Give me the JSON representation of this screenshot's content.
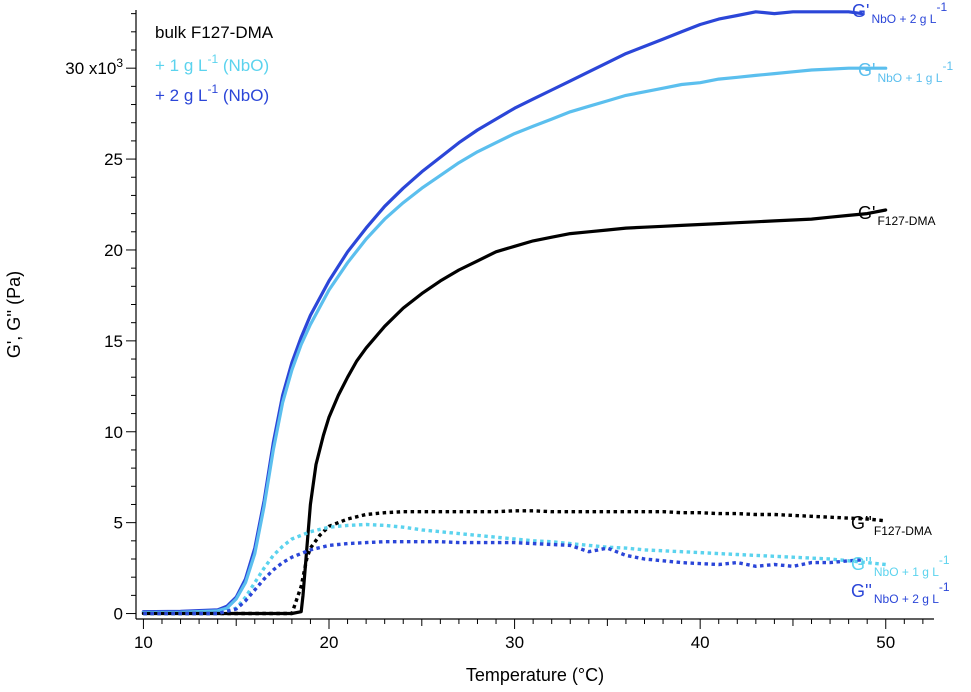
{
  "chart_data": {
    "type": "line",
    "title": "",
    "xlabel": "Temperature (°C)",
    "ylabel": "G', G'' (Pa)",
    "xlim": [
      9.6,
      52.6
    ],
    "ylim": [
      -0.3,
      33.2
    ],
    "x_ticks": [
      10,
      20,
      30,
      40,
      50
    ],
    "x_tick_labels": [
      "10",
      "20",
      "30",
      "40",
      "50"
    ],
    "y_ticks": [
      0,
      5,
      10,
      15,
      20,
      25,
      30
    ],
    "y_tick_labels": [
      "0",
      "5",
      "10",
      "15",
      "20",
      "25",
      "30 x10"
    ],
    "y_tick_top_exponent": "3",
    "legend": {
      "placement": "top-left",
      "entries": [
        {
          "text": "bulk F127-DMA",
          "color": "#000000"
        },
        {
          "text": "+ 1 g L",
          "sup": "-1",
          "suffix": " (NbO)",
          "color": "#5bd3ee"
        },
        {
          "text": "+ 2 g L",
          "sup": "-1",
          "suffix": " (NbO)",
          "color": "#2b46d8"
        }
      ]
    },
    "series": [
      {
        "key": "gp_2",
        "label_main": "G'",
        "label_sub": "NbO + 2 g L",
        "label_sup": "-1",
        "color": "#2b46d8",
        "style": "solid",
        "x": [
          10,
          12,
          14,
          14.5,
          15,
          15.5,
          16,
          16.5,
          17,
          17.5,
          18,
          18.5,
          19,
          20,
          21,
          22,
          23,
          24,
          25,
          26,
          27,
          28,
          29,
          30,
          31,
          32,
          33,
          34,
          35,
          36,
          37,
          38,
          39,
          40,
          41,
          42,
          43,
          44,
          45,
          46,
          47,
          48,
          48.7
        ],
        "y": [
          0.1,
          0.12,
          0.2,
          0.4,
          0.9,
          1.9,
          3.6,
          6.2,
          9.4,
          12.0,
          13.8,
          15.2,
          16.4,
          18.3,
          19.9,
          21.2,
          22.4,
          23.4,
          24.3,
          25.1,
          25.9,
          26.6,
          27.2,
          27.8,
          28.3,
          28.8,
          29.3,
          29.8,
          30.3,
          30.8,
          31.2,
          31.6,
          32.0,
          32.4,
          32.7,
          32.9,
          33.1,
          33.0,
          33.1,
          33.1,
          33.1,
          33.1,
          33.0
        ]
      },
      {
        "key": "gp_1",
        "label_main": "G'",
        "label_sub": "NbO + 1 g L",
        "label_sup": "-1",
        "color": "#5bbfee",
        "style": "solid",
        "x": [
          10,
          12,
          14,
          14.5,
          15,
          15.5,
          16,
          16.5,
          17,
          17.5,
          18,
          18.5,
          19,
          20,
          21,
          22,
          23,
          24,
          25,
          26,
          27,
          28,
          29,
          30,
          31,
          32,
          33,
          34,
          35,
          36,
          37,
          38,
          39,
          40,
          41,
          42,
          43,
          44,
          45,
          46,
          47,
          48,
          49,
          50
        ],
        "y": [
          0.05,
          0.07,
          0.15,
          0.3,
          0.8,
          1.7,
          3.3,
          5.9,
          9.0,
          11.6,
          13.4,
          14.8,
          15.9,
          17.8,
          19.3,
          20.6,
          21.7,
          22.6,
          23.4,
          24.1,
          24.8,
          25.4,
          25.9,
          26.4,
          26.8,
          27.2,
          27.6,
          27.9,
          28.2,
          28.5,
          28.7,
          28.9,
          29.1,
          29.2,
          29.4,
          29.5,
          29.6,
          29.7,
          29.8,
          29.9,
          29.95,
          30.0,
          30.0,
          30.0
        ]
      },
      {
        "key": "gp_0",
        "label_main": "G'",
        "label_sub": "F127-DMA",
        "label_sup": "",
        "color": "#000000",
        "style": "solid",
        "x": [
          10,
          14,
          17,
          18,
          18.5,
          18.6,
          18.8,
          19,
          19.3,
          19.7,
          20,
          20.5,
          21,
          21.5,
          22,
          22.5,
          23,
          24,
          25,
          26,
          27,
          28,
          29,
          30,
          31,
          32,
          33,
          34,
          35,
          36,
          37,
          38,
          39,
          40,
          41,
          42,
          43,
          44,
          45,
          46,
          47,
          48,
          49,
          50
        ],
        "y": [
          0,
          0,
          0,
          0,
          0.1,
          1.0,
          3.5,
          6.0,
          8.2,
          9.8,
          10.8,
          12.0,
          13.0,
          13.9,
          14.6,
          15.2,
          15.8,
          16.8,
          17.6,
          18.3,
          18.9,
          19.4,
          19.9,
          20.2,
          20.5,
          20.7,
          20.9,
          21.0,
          21.1,
          21.2,
          21.25,
          21.3,
          21.35,
          21.4,
          21.45,
          21.5,
          21.55,
          21.6,
          21.65,
          21.7,
          21.8,
          21.9,
          22.0,
          22.2
        ]
      },
      {
        "key": "gpp_0",
        "label_main": "G''",
        "label_sub": "F127-DMA",
        "label_sup": "",
        "color": "#000000",
        "style": "dotted",
        "x": [
          10,
          14,
          17,
          18,
          18.5,
          18.8,
          19,
          19.5,
          20,
          21,
          22,
          23,
          24,
          25,
          26,
          27,
          28,
          29,
          30,
          31,
          32,
          33,
          34,
          35,
          36,
          37,
          38,
          39,
          40,
          41,
          42,
          43,
          44,
          45,
          46,
          47,
          48,
          49,
          50
        ],
        "y": [
          0,
          0,
          0,
          0,
          1.5,
          3.0,
          3.6,
          4.3,
          4.8,
          5.2,
          5.45,
          5.55,
          5.6,
          5.6,
          5.6,
          5.6,
          5.6,
          5.6,
          5.65,
          5.65,
          5.6,
          5.6,
          5.6,
          5.6,
          5.6,
          5.6,
          5.6,
          5.55,
          5.55,
          5.5,
          5.5,
          5.45,
          5.45,
          5.4,
          5.35,
          5.3,
          5.25,
          5.2,
          5.1
        ]
      },
      {
        "key": "gpp_1",
        "label_main": "G''",
        "label_sub": "NbO + 1 g L",
        "label_sup": "-1",
        "color": "#5bd3ee",
        "style": "dotted",
        "x": [
          10,
          14,
          15,
          15.5,
          16,
          16.5,
          17,
          17.5,
          18,
          19,
          20,
          21,
          22,
          23,
          24,
          25,
          26,
          27,
          28,
          29,
          30,
          31,
          32,
          33,
          34,
          35,
          36,
          37,
          38,
          39,
          40,
          41,
          42,
          43,
          44,
          45,
          46,
          47,
          48,
          49,
          50
        ],
        "y": [
          0,
          0,
          0.3,
          0.9,
          1.7,
          2.5,
          3.2,
          3.7,
          4.1,
          4.5,
          4.75,
          4.85,
          4.9,
          4.85,
          4.75,
          4.6,
          4.5,
          4.4,
          4.3,
          4.2,
          4.1,
          4.0,
          3.95,
          3.85,
          3.75,
          3.65,
          3.6,
          3.5,
          3.45,
          3.4,
          3.35,
          3.3,
          3.25,
          3.2,
          3.15,
          3.1,
          3.05,
          3.0,
          2.9,
          2.8,
          2.7
        ]
      },
      {
        "key": "gpp_2",
        "label_main": "G''",
        "label_sub": "NbO + 2 g L",
        "label_sup": "-1",
        "color": "#2b46d8",
        "style": "dotted",
        "x": [
          10,
          14,
          15,
          15.5,
          16,
          16.5,
          17,
          17.5,
          18,
          19,
          20,
          21,
          22,
          23,
          24,
          25,
          26,
          27,
          28,
          29,
          30,
          31,
          32,
          33,
          34,
          35,
          36,
          37,
          38,
          39,
          40,
          41,
          42,
          43,
          44,
          45,
          46,
          47,
          48,
          48.7
        ],
        "y": [
          0,
          0,
          0.25,
          0.7,
          1.3,
          1.9,
          2.4,
          2.8,
          3.1,
          3.5,
          3.75,
          3.85,
          3.9,
          3.95,
          3.95,
          3.95,
          3.95,
          3.9,
          3.9,
          3.9,
          3.9,
          3.85,
          3.8,
          3.75,
          3.4,
          3.6,
          3.2,
          3.0,
          2.9,
          2.8,
          2.75,
          2.7,
          2.8,
          2.6,
          2.7,
          2.6,
          2.8,
          2.8,
          2.9,
          2.95
        ]
      }
    ]
  }
}
